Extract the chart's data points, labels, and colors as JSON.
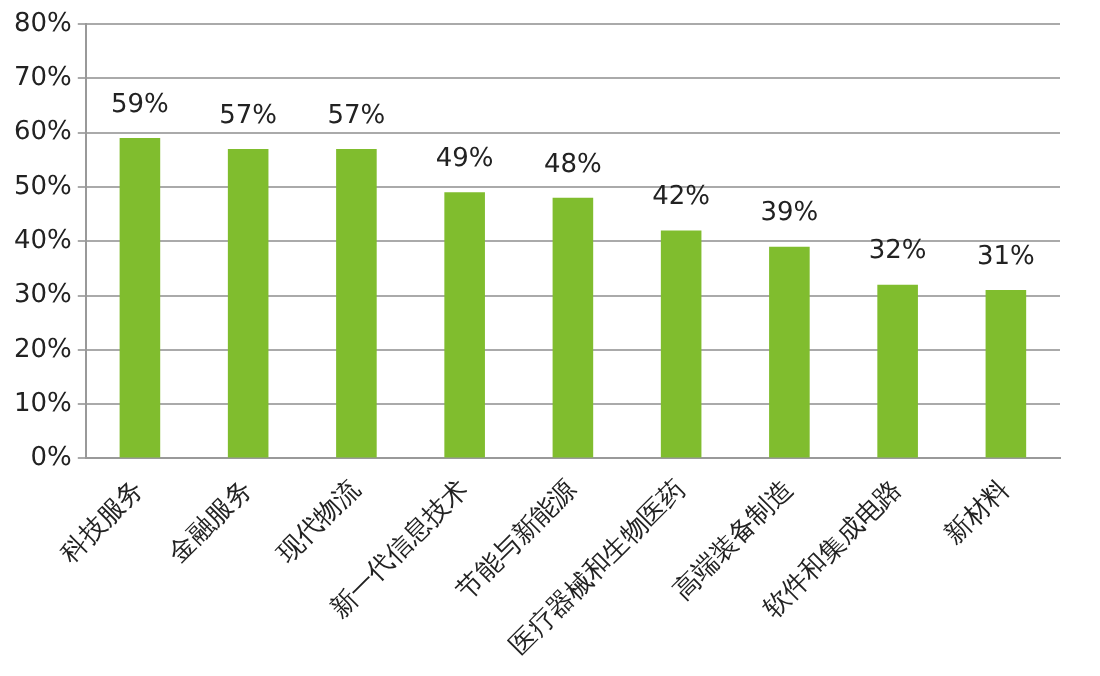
{
  "chart_data": {
    "type": "bar",
    "categories": [
      "科技服务",
      "金融服务",
      "现代物流",
      "新一代信息技术",
      "节能与新能源",
      "医疗器械和生物医药",
      "高端装备制造",
      "软件和集成电路",
      "新材料"
    ],
    "values": [
      59,
      57,
      57,
      49,
      48,
      42,
      39,
      32,
      31
    ],
    "value_labels": [
      "59%",
      "57%",
      "57%",
      "49%",
      "48%",
      "42%",
      "39%",
      "32%",
      "31%"
    ],
    "color": "#80bd2e",
    "ylim": [
      0,
      80
    ],
    "yticks": [
      {
        "value": 0,
        "label": "0%"
      },
      {
        "value": 10,
        "label": "10%"
      },
      {
        "value": 20,
        "label": "20%"
      },
      {
        "value": 30,
        "label": "30%"
      },
      {
        "value": 40,
        "label": "40%"
      },
      {
        "value": 50,
        "label": "50%"
      },
      {
        "value": 60,
        "label": "60%"
      },
      {
        "value": 70,
        "label": "70%"
      },
      {
        "value": 80,
        "label": "80%"
      }
    ],
    "grid": "y",
    "legend": false
  }
}
